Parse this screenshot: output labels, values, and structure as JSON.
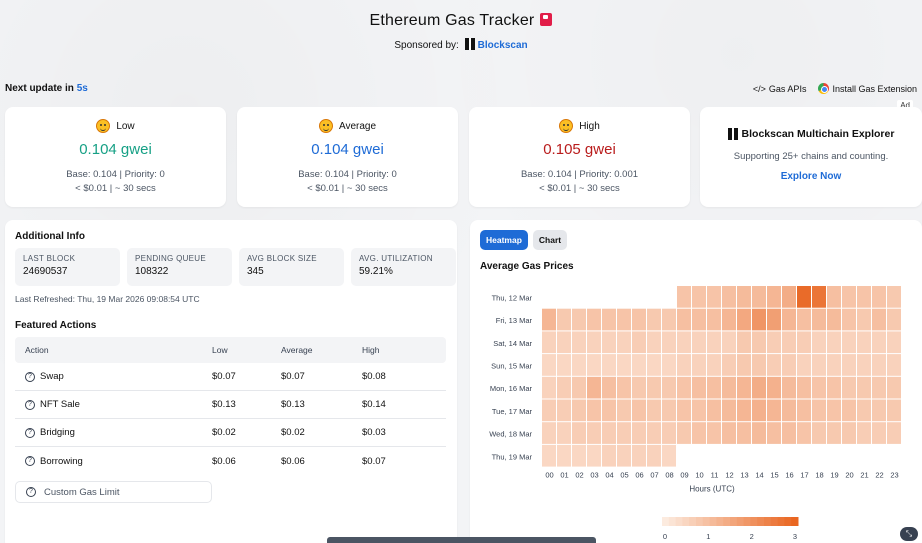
{
  "header": {
    "title": "Ethereum Gas Tracker",
    "sponsor_label": "Sponsored by:",
    "sponsor_name": "Blockscan"
  },
  "next_update": {
    "label": "Next update in",
    "value": "5s"
  },
  "top_links": {
    "gas_apis": "Gas APIs",
    "install_ext": "Install Gas Extension",
    "ad": "Ad"
  },
  "prices": [
    {
      "label": "Low",
      "value": "0.104 gwei",
      "base_priority": "Base: 0.104 | Priority: 0",
      "cost_time": "< $0.01 | ~ 30 secs",
      "color": "#16a085"
    },
    {
      "label": "Average",
      "value": "0.104 gwei",
      "base_priority": "Base: 0.104 | Priority: 0",
      "cost_time": "< $0.01 | ~ 30 secs",
      "color": "#1e6bd6"
    },
    {
      "label": "High",
      "value": "0.105 gwei",
      "base_priority": "Base: 0.104 | Priority: 0.001",
      "cost_time": "< $0.01 | ~ 30 secs",
      "color": "#b91c1c"
    }
  ],
  "ad": {
    "title": "Blockscan Multichain Explorer",
    "subtitle": "Supporting 25+ chains and counting.",
    "cta": "Explore Now"
  },
  "info": {
    "title": "Additional Info",
    "stats": [
      {
        "key": "LAST BLOCK",
        "value": "24690537"
      },
      {
        "key": "PENDING QUEUE",
        "value": "108322"
      },
      {
        "key": "AVG BLOCK SIZE",
        "value": "345"
      },
      {
        "key": "AVG. UTILIZATION",
        "value": "59.21%"
      }
    ],
    "last_refreshed": "Last Refreshed: Thu, 19 Mar 2026 09:08:54 UTC"
  },
  "featured": {
    "title": "Featured Actions",
    "headers": [
      "Action",
      "Low",
      "Average",
      "High"
    ],
    "rows": [
      {
        "action": "Swap",
        "low": "$0.07",
        "avg": "$0.07",
        "high": "$0.08"
      },
      {
        "action": "NFT Sale",
        "low": "$0.13",
        "avg": "$0.13",
        "high": "$0.14"
      },
      {
        "action": "Bridging",
        "low": "$0.02",
        "avg": "$0.02",
        "high": "$0.03"
      },
      {
        "action": "Borrowing",
        "low": "$0.06",
        "avg": "$0.06",
        "high": "$0.07"
      }
    ],
    "custom_limit": "Custom Gas Limit"
  },
  "chart_tabs": {
    "heatmap": "Heatmap",
    "chart": "Chart"
  },
  "chart_data": {
    "type": "heatmap",
    "title": "Average Gas Prices",
    "xlabel": "Hours (UTC)",
    "ylabel": "",
    "x": [
      "00",
      "01",
      "02",
      "03",
      "04",
      "05",
      "06",
      "07",
      "08",
      "09",
      "10",
      "11",
      "12",
      "13",
      "14",
      "15",
      "16",
      "17",
      "18",
      "19",
      "20",
      "21",
      "22",
      "23"
    ],
    "y": [
      "Thu, 12 Mar",
      "Fri, 13 Mar",
      "Sat, 14 Mar",
      "Sun, 15 Mar",
      "Mon, 16 Mar",
      "Tue, 17 Mar",
      "Wed, 18 Mar",
      "Thu, 19 Mar"
    ],
    "values": [
      [
        null,
        null,
        null,
        null,
        null,
        null,
        null,
        null,
        null,
        0.9,
        0.9,
        0.9,
        1.0,
        1.1,
        1.1,
        1.2,
        1.4,
        2.8,
        2.6,
        1.0,
        0.9,
        0.9,
        0.9,
        0.8
      ],
      [
        1.2,
        0.8,
        0.8,
        0.9,
        0.9,
        0.9,
        0.9,
        0.8,
        0.8,
        1.0,
        1.0,
        1.0,
        1.2,
        1.5,
        1.9,
        1.7,
        1.2,
        1.0,
        1.1,
        1.1,
        0.9,
        0.8,
        1.0,
        0.8
      ],
      [
        0.6,
        0.6,
        0.6,
        0.6,
        0.6,
        0.6,
        0.7,
        0.6,
        0.6,
        0.6,
        0.6,
        0.6,
        0.6,
        0.8,
        0.8,
        0.7,
        0.7,
        0.7,
        0.6,
        0.6,
        0.6,
        0.6,
        0.6,
        0.6
      ],
      [
        0.5,
        0.5,
        0.5,
        0.5,
        0.5,
        0.5,
        0.5,
        0.5,
        0.5,
        0.6,
        0.6,
        0.6,
        0.7,
        0.8,
        0.8,
        0.7,
        0.7,
        0.6,
        0.6,
        0.6,
        0.6,
        0.6,
        0.6,
        0.6
      ],
      [
        0.6,
        0.7,
        0.8,
        1.2,
        1.0,
        0.9,
        0.8,
        0.8,
        0.8,
        0.9,
        1.0,
        1.0,
        1.1,
        1.2,
        1.4,
        1.3,
        1.1,
        1.0,
        0.9,
        0.9,
        0.8,
        0.8,
        0.8,
        0.8
      ],
      [
        0.7,
        0.7,
        0.8,
        0.9,
        0.9,
        0.8,
        0.9,
        0.8,
        0.8,
        0.9,
        0.9,
        1.0,
        1.1,
        1.2,
        1.3,
        1.2,
        1.1,
        1.0,
        0.9,
        0.9,
        0.9,
        0.8,
        0.8,
        0.8
      ],
      [
        0.6,
        0.6,
        0.7,
        0.7,
        0.7,
        0.7,
        0.7,
        0.7,
        0.7,
        0.8,
        0.9,
        0.9,
        1.0,
        1.0,
        1.1,
        1.0,
        1.0,
        0.9,
        0.8,
        0.8,
        0.8,
        0.7,
        0.7,
        0.7
      ],
      [
        0.5,
        0.5,
        0.5,
        0.5,
        0.6,
        0.6,
        0.6,
        0.6,
        0.5,
        null,
        null,
        null,
        null,
        null,
        null,
        null,
        null,
        null,
        null,
        null,
        null,
        null,
        null,
        null
      ]
    ],
    "scale_ticks": [
      "0",
      "1",
      "2",
      "3"
    ],
    "scale_range": [
      0,
      3
    ],
    "color_low": "#fdeee4",
    "color_high": "#e8621c"
  }
}
